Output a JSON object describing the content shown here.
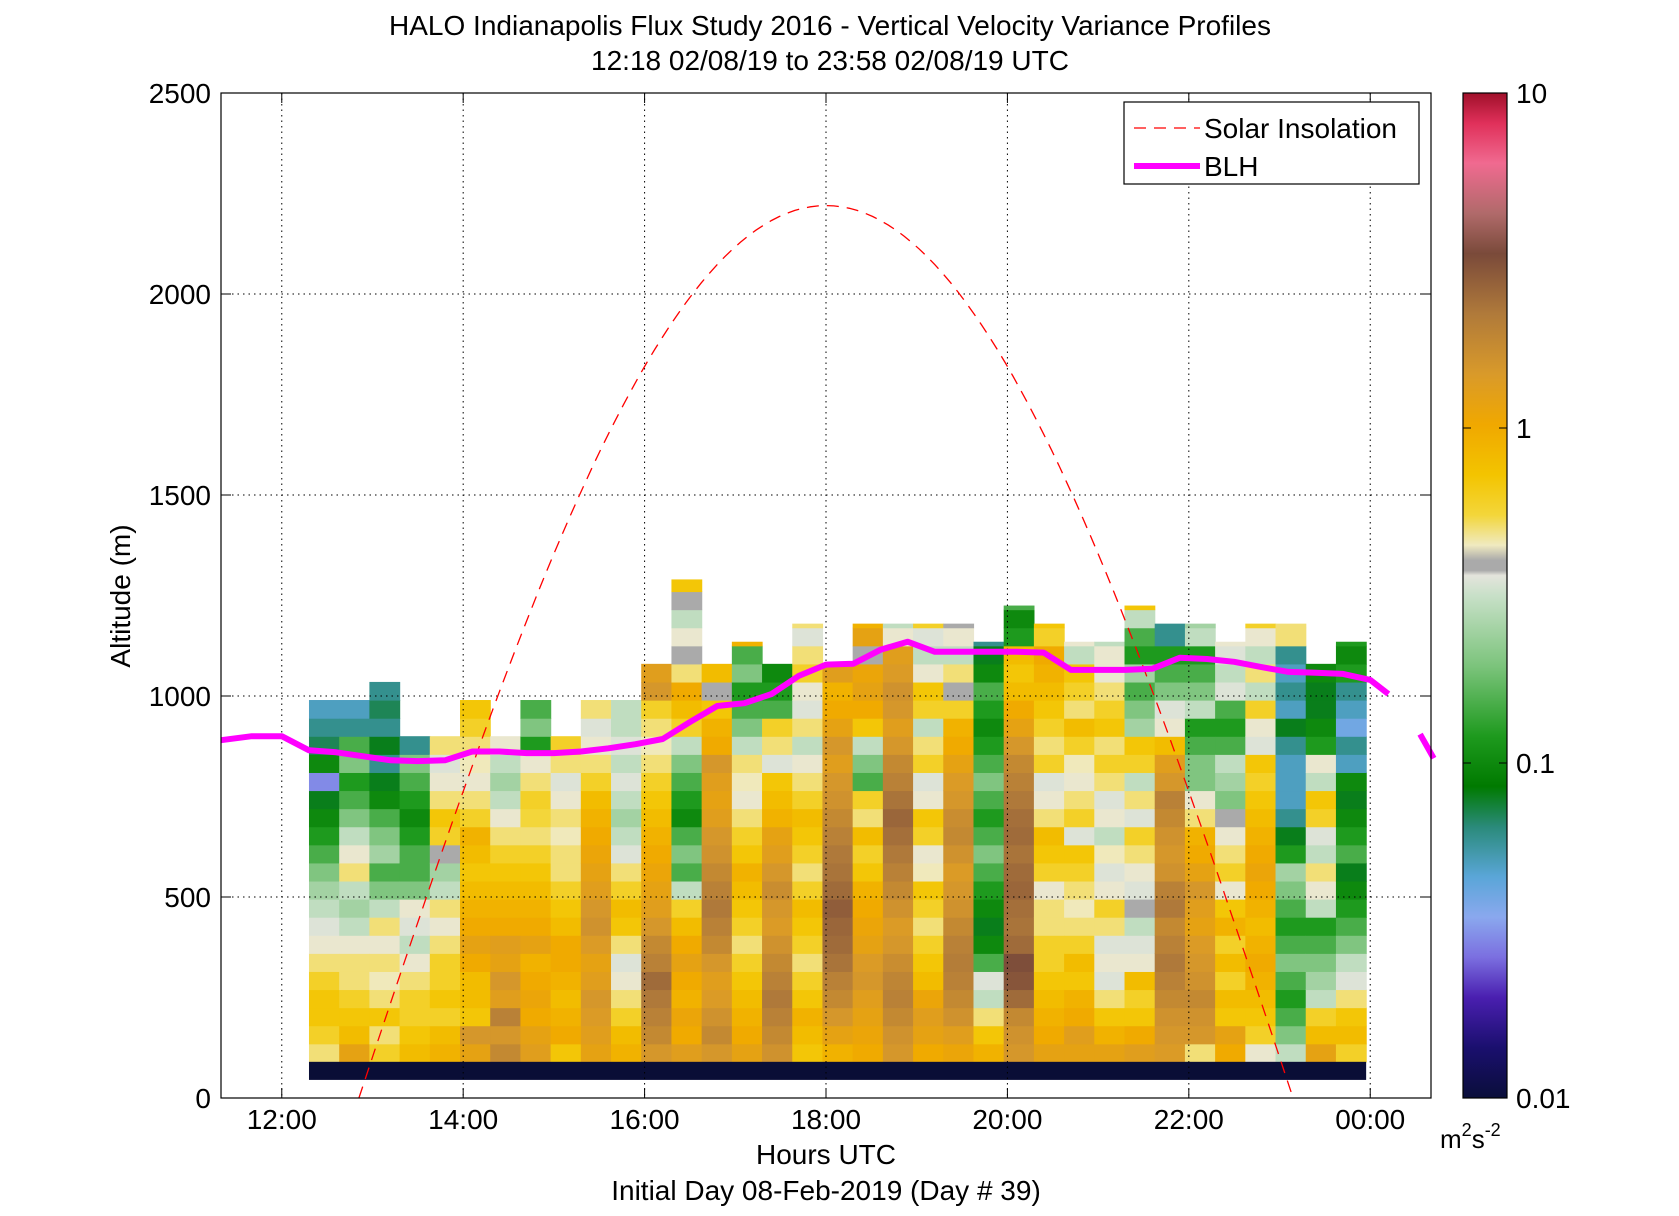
{
  "title": {
    "line1": "HALO Indianapolis Flux Study 2016 - Vertical Velocity Variance Profiles",
    "line2": "12:18 02/08/19 to 23:58 02/08/19  UTC"
  },
  "xaxis": {
    "label": "Hours UTC",
    "sublabel": "Initial Day 08-Feb-2019 (Day # 39)"
  },
  "yaxis": {
    "label": "Altitude (m)"
  },
  "colorbar": {
    "unit_base": "m",
    "unit_exp1": "2",
    "unit_mid": "s",
    "unit_exp2": "-2",
    "ticks": [
      "10",
      "1",
      "0.1",
      "0.01"
    ],
    "scale": "log",
    "range": [
      0.01,
      10
    ]
  },
  "legend": {
    "placement": "top-right",
    "entries": [
      {
        "label": "Solar Insolation",
        "color": "#ff0000",
        "style": "dashed"
      },
      {
        "label": "BLH",
        "color": "#ff00ff",
        "style": "solid"
      }
    ]
  },
  "chart_data": {
    "type": "heatmap",
    "x_range_hours": [
      11.33,
      24.67
    ],
    "y_range_m": [
      0,
      2500
    ],
    "grid": true,
    "x_ticks": [
      {
        "h": 12,
        "label": "12:00"
      },
      {
        "h": 14,
        "label": "14:00"
      },
      {
        "h": 16,
        "label": "16:00"
      },
      {
        "h": 18,
        "label": "18:00"
      },
      {
        "h": 20,
        "label": "20:00"
      },
      {
        "h": 22,
        "label": "22:00"
      },
      {
        "h": 24,
        "label": "00:00"
      }
    ],
    "y_ticks": [
      {
        "v": 0,
        "label": "0"
      },
      {
        "v": 500,
        "label": "500"
      },
      {
        "v": 1000,
        "label": "1000"
      },
      {
        "v": 1500,
        "label": "1500"
      },
      {
        "v": 2000,
        "label": "2000"
      },
      {
        "v": 2500,
        "label": "2500"
      }
    ],
    "col_start_h": 12.3,
    "col_width_h": 0.333,
    "row_start_m": 90,
    "row_height_m": 45,
    "ground_band": {
      "from_m": 45,
      "to_m": 90,
      "color": "#0a0e36"
    },
    "variance_columns": [
      {
        "top_m": 1000,
        "v": [
          0.5,
          0.6,
          0.7,
          0.7,
          0.6,
          0.5,
          0.4,
          0.35,
          0.3,
          0.25,
          0.2,
          0.15,
          0.12,
          0.1,
          0.08,
          0.03,
          0.1,
          0.07,
          0.06,
          0.05
        ]
      },
      {
        "top_m": 1000,
        "v": [
          1.2,
          0.8,
          0.7,
          0.6,
          0.5,
          0.5,
          0.4,
          0.3,
          0.25,
          0.3,
          0.5,
          0.4,
          0.3,
          0.2,
          0.15,
          0.12,
          0.2,
          0.15,
          0.06,
          0.05
        ]
      },
      {
        "top_m": 1045,
        "v": [
          0.6,
          0.5,
          0.7,
          0.5,
          0.45,
          0.5,
          0.4,
          0.5,
          0.3,
          0.2,
          0.15,
          0.25,
          0.2,
          0.15,
          0.1,
          0.08,
          0.06,
          0.08,
          0.06,
          0.07,
          0.06
        ]
      },
      {
        "top_m": 955,
        "v": [
          0.8,
          0.7,
          0.6,
          0.6,
          0.5,
          0.4,
          0.3,
          0.35,
          0.4,
          0.2,
          0.15,
          0.15,
          0.12,
          0.1,
          0.12,
          0.15,
          0.2,
          0.06
        ]
      },
      {
        "top_m": 955,
        "v": [
          0.9,
          0.8,
          0.6,
          0.7,
          0.6,
          0.6,
          0.5,
          0.4,
          0.5,
          0.3,
          0.25,
          "x",
          0.6,
          0.7,
          0.5,
          0.4,
          0.35,
          0.5
        ]
      },
      {
        "top_m": 1000,
        "v": [
          1.2,
          1.5,
          0.7,
          0.8,
          0.8,
          1.0,
          1.2,
          1.0,
          0.9,
          0.8,
          0.7,
          0.8,
          0.9,
          0.6,
          0.5,
          0.4,
          0.45,
          0.5,
          0.6,
          0.7
        ]
      },
      {
        "top_m": 955,
        "v": [
          1.8,
          1.5,
          2.0,
          1.3,
          1.5,
          1.2,
          1.3,
          1.0,
          0.9,
          0.8,
          0.7,
          0.6,
          0.5,
          0.4,
          0.3,
          0.25,
          0.3,
          0.4
        ]
      },
      {
        "top_m": 1000,
        "v": [
          1.3,
          1.2,
          1.0,
          1.1,
          1.0,
          0.9,
          1.2,
          1.0,
          0.9,
          0.8,
          0.7,
          0.6,
          0.5,
          0.55,
          0.6,
          0.5,
          0.4,
          0.12,
          0.2,
          0.15
        ]
      },
      {
        "top_m": 955,
        "v": [
          0.7,
          1.0,
          0.9,
          0.8,
          0.9,
          1.0,
          1.0,
          0.8,
          0.7,
          0.6,
          0.5,
          0.5,
          0.45,
          0.5,
          0.4,
          0.35,
          0.5,
          0.6
        ]
      },
      {
        "top_m": 1000,
        "v": [
          1.2,
          1.3,
          1.4,
          1.5,
          1.3,
          1.2,
          1.4,
          1.6,
          1.5,
          1.3,
          1.2,
          1.1,
          1.0,
          0.9,
          0.8,
          0.6,
          0.5,
          0.4,
          0.35,
          0.5
        ]
      },
      {
        "top_m": 1000,
        "v": [
          0.9,
          0.8,
          0.6,
          0.5,
          0.4,
          0.35,
          0.5,
          0.7,
          0.8,
          0.6,
          0.5,
          0.35,
          0.3,
          0.25,
          0.3,
          0.35,
          0.3,
          0.35,
          0.3,
          0.3
        ]
      },
      {
        "top_m": 1090,
        "v": [
          1.5,
          1.8,
          2.0,
          2.2,
          2.5,
          2.0,
          1.8,
          1.5,
          1.3,
          1.2,
          1.1,
          1.0,
          0.9,
          0.8,
          0.7,
          0.6,
          0.5,
          0.45,
          0.5,
          0.6,
          1.5,
          1.3
        ]
      },
      {
        "top_m": 1290,
        "v": [
          1.3,
          1.0,
          1.1,
          0.9,
          1.0,
          1.2,
          1.0,
          0.8,
          0.6,
          0.3,
          0.15,
          0.2,
          0.15,
          0.1,
          0.12,
          0.15,
          0.2,
          0.3,
          0.6,
          0.8,
          1.0,
          0.5,
          "x",
          0.4,
          0.3,
          "x",
          0.7
        ]
      },
      {
        "top_m": 1090,
        "v": [
          1.5,
          1.8,
          1.6,
          1.4,
          1.3,
          1.5,
          1.8,
          2.0,
          2.2,
          2.0,
          1.8,
          1.6,
          1.5,
          1.3,
          1.2,
          1.3,
          1.5,
          1.0,
          0.9,
          0.7,
          "x",
          0.8
        ]
      },
      {
        "top_m": 1135,
        "v": [
          1.2,
          1.0,
          0.9,
          0.8,
          0.7,
          0.6,
          0.5,
          0.6,
          0.7,
          0.8,
          0.9,
          0.7,
          0.6,
          0.5,
          0.4,
          0.45,
          0.5,
          0.3,
          0.2,
          0.15,
          0.12,
          0.2,
          0.15,
          0.9
        ]
      },
      {
        "top_m": 1090,
        "v": [
          1.6,
          1.8,
          2.0,
          2.2,
          2.0,
          1.8,
          1.6,
          1.4,
          1.5,
          1.7,
          1.5,
          1.3,
          1.2,
          0.9,
          0.8,
          0.7,
          0.35,
          0.5,
          0.6,
          0.15,
          0.12,
          0.1
        ]
      },
      {
        "top_m": 1180,
        "v": [
          0.7,
          0.8,
          0.9,
          0.7,
          0.6,
          0.5,
          0.6,
          0.7,
          0.8,
          0.6,
          0.5,
          0.6,
          0.7,
          0.8,
          0.6,
          0.5,
          0.4,
          0.3,
          0.5,
          0.35,
          0.4,
          0.6,
          0.5,
          0.35,
          0.5
        ]
      },
      {
        "top_m": 1090,
        "v": [
          0.9,
          1.2,
          1.5,
          1.8,
          2.0,
          2.3,
          2.5,
          2.6,
          2.8,
          2.5,
          2.3,
          2.2,
          2.0,
          1.8,
          1.6,
          1.5,
          1.3,
          1.5,
          1.2,
          1.0,
          0.9,
          1.3
        ]
      },
      {
        "top_m": 1180,
        "v": [
          1.0,
          1.1,
          1.2,
          1.3,
          1.5,
          1.4,
          1.2,
          1.1,
          1.0,
          0.9,
          0.7,
          0.6,
          0.8,
          0.5,
          0.6,
          0.15,
          0.2,
          0.3,
          0.7,
          1.0,
          1.2,
          1.1,
          "x",
          1.2,
          0.9
        ]
      },
      {
        "top_m": 1180,
        "v": [
          1.5,
          1.6,
          1.8,
          2.0,
          1.9,
          1.7,
          1.5,
          1.4,
          1.6,
          1.8,
          2.0,
          2.2,
          2.4,
          2.6,
          2.3,
          2.0,
          1.8,
          1.5,
          1.3,
          1.5,
          1.6,
          1.4,
          1.3,
          0.4,
          0.3
        ]
      },
      {
        "top_m": 1180,
        "v": [
          1.0,
          1.2,
          1.3,
          1.1,
          0.8,
          0.7,
          0.6,
          0.5,
          0.6,
          0.7,
          0.45,
          0.4,
          0.6,
          0.7,
          0.4,
          0.35,
          0.6,
          0.5,
          0.3,
          0.6,
          0.7,
          0.4,
          0.3,
          0.35,
          0.6
        ]
      },
      {
        "top_m": 1180,
        "v": [
          1.1,
          1.3,
          1.6,
          1.8,
          2.0,
          2.1,
          2.0,
          1.8,
          1.6,
          1.5,
          1.4,
          1.6,
          1.8,
          1.7,
          1.5,
          1.4,
          1.2,
          1.0,
          0.9,
          0.6,
          "x",
          0.5,
          0.3,
          0.4,
          "x"
        ]
      },
      {
        "top_m": 1135,
        "v": [
          0.9,
          0.7,
          0.5,
          0.3,
          0.35,
          0.15,
          0.1,
          0.08,
          0.1,
          0.12,
          0.15,
          0.2,
          0.15,
          0.12,
          0.15,
          0.2,
          0.15,
          0.12,
          0.1,
          0.12,
          0.15,
          0.1,
          0.08,
          0.06
        ]
      },
      {
        "top_m": 1225,
        "v": [
          1.5,
          1.6,
          1.8,
          2.5,
          3.0,
          3.2,
          2.5,
          2.3,
          2.4,
          2.6,
          2.5,
          2.3,
          2.5,
          2.4,
          2.2,
          2.0,
          1.8,
          1.5,
          1.2,
          1.0,
          0.8,
          0.7,
          0.8,
          0.12,
          0.1,
          0.15
        ]
      },
      {
        "top_m": 1180,
        "v": [
          1.2,
          1.0,
          0.9,
          0.8,
          0.7,
          0.6,
          0.6,
          0.5,
          0.5,
          0.4,
          0.6,
          0.7,
          0.8,
          0.5,
          0.4,
          0.35,
          0.6,
          0.5,
          0.6,
          0.7,
          0.8,
          0.9,
          1.0,
          0.6,
          0.7
        ]
      },
      {
        "top_m": 1135,
        "v": [
          1.2,
          1.3,
          1.0,
          0.9,
          0.7,
          0.8,
          0.6,
          0.5,
          0.45,
          0.5,
          0.6,
          0.7,
          0.35,
          0.6,
          0.5,
          0.4,
          0.45,
          0.6,
          0.8,
          0.5,
          0.6,
          0.7,
          0.3,
          0.4
        ]
      },
      {
        "top_m": 1135,
        "v": [
          1.2,
          0.9,
          0.7,
          0.5,
          0.35,
          0.4,
          0.35,
          0.5,
          0.6,
          0.4,
          0.35,
          0.45,
          0.3,
          0.4,
          0.35,
          0.5,
          0.6,
          0.5,
          0.7,
          0.6,
          0.5,
          0.4,
          0.4,
          0.3
        ]
      },
      {
        "top_m": 1225,
        "v": [
          1.3,
          1.0,
          0.7,
          0.6,
          0.8,
          0.4,
          0.35,
          0.3,
          "x",
          0.35,
          0.4,
          0.5,
          0.6,
          0.35,
          0.5,
          0.3,
          0.6,
          0.7,
          0.25,
          0.2,
          0.15,
          0.25,
          0.12,
          0.15,
          0.3,
          0.7
        ]
      },
      {
        "top_m": 1180,
        "v": [
          1.4,
          1.5,
          1.6,
          1.8,
          2.0,
          2.2,
          2.0,
          1.8,
          2.2,
          2.0,
          1.6,
          1.5,
          1.6,
          1.8,
          2.0,
          1.5,
          1.3,
          0.8,
          0.4,
          0.35,
          0.2,
          0.15,
          0.12,
          0.06,
          0.06
        ]
      },
      {
        "top_m": 1180,
        "v": [
          0.5,
          1.5,
          1.6,
          1.8,
          1.6,
          1.5,
          1.4,
          1.2,
          1.3,
          1.5,
          1.2,
          1.0,
          0.9,
          0.5,
          0.4,
          0.2,
          0.2,
          0.15,
          0.12,
          0.3,
          0.2,
          0.15,
          0.12,
          0.3,
          0.25
        ]
      },
      {
        "top_m": 1135,
        "v": [
          1.0,
          1.2,
          0.7,
          0.8,
          0.6,
          0.8,
          0.6,
          0.9,
          0.7,
          0.4,
          0.6,
          0.5,
          0.4,
          "x",
          0.2,
          0.25,
          0.3,
          0.15,
          0.12,
          0.15,
          0.35,
          0.3,
          0.35,
          0.4
        ]
      },
      {
        "top_m": 1180,
        "v": [
          0.4,
          0.6,
          0.7,
          0.8,
          0.9,
          1.0,
          0.9,
          0.8,
          0.9,
          1.0,
          1.1,
          1.0,
          0.9,
          0.8,
          0.7,
          0.6,
          0.7,
          0.35,
          0.4,
          0.6,
          0.3,
          0.5,
          0.3,
          0.4,
          0.6
        ]
      },
      {
        "top_m": 1180,
        "v": [
          0.3,
          0.2,
          0.15,
          0.12,
          0.15,
          0.2,
          0.15,
          0.12,
          0.15,
          0.2,
          0.25,
          0.12,
          0.08,
          0.06,
          0.05,
          0.05,
          0.05,
          0.06,
          0.08,
          0.05,
          0.06,
          0.05,
          0.06,
          0.5,
          0.5
        ]
      },
      {
        "top_m": 1090,
        "v": [
          1.2,
          0.8,
          0.6,
          0.3,
          0.25,
          0.2,
          0.15,
          0.12,
          0.3,
          0.4,
          0.5,
          0.3,
          0.35,
          0.6,
          0.7,
          0.3,
          0.4,
          0.12,
          0.1,
          0.08,
          0.08,
          0.1
        ]
      },
      {
        "top_m": 1135,
        "v": [
          0.6,
          0.8,
          0.7,
          0.5,
          0.35,
          0.3,
          0.2,
          0.15,
          0.12,
          0.1,
          0.08,
          0.15,
          0.12,
          0.1,
          0.08,
          0.1,
          0.05,
          0.06,
          0.04,
          0.05,
          0.06,
          0.12,
          0.1,
          0.12
        ]
      }
    ],
    "blh": {
      "name": "BLH",
      "x_h": [
        11.33,
        11.67,
        12.0,
        12.3,
        12.6,
        12.9,
        13.2,
        13.5,
        13.8,
        14.1,
        14.4,
        14.7,
        15.0,
        15.3,
        15.6,
        15.9,
        16.2,
        16.5,
        16.8,
        17.1,
        17.4,
        17.7,
        18.0,
        18.3,
        18.6,
        18.9,
        19.2,
        19.5,
        19.8,
        20.1,
        20.4,
        20.7,
        21.0,
        21.3,
        21.6,
        21.9,
        22.2,
        22.5,
        22.8,
        23.1,
        23.4,
        23.7,
        24.0,
        24.2
      ],
      "y_m": [
        890,
        900,
        900,
        865,
        860,
        850,
        840,
        838,
        840,
        862,
        862,
        858,
        858,
        862,
        870,
        880,
        893,
        935,
        975,
        982,
        1005,
        1050,
        1078,
        1080,
        1115,
        1135,
        1110,
        1110,
        1110,
        1110,
        1108,
        1065,
        1065,
        1065,
        1068,
        1095,
        1092,
        1085,
        1072,
        1060,
        1058,
        1055,
        1040,
        1005
      ],
      "tail_x_h": [
        24.55,
        24.7
      ],
      "tail_y_m": [
        905,
        845
      ]
    },
    "solar": {
      "name": "Solar Insolation",
      "sunrise_h": 12.85,
      "noon_h": 18.0,
      "sunset_h": 23.15,
      "peak_m": 2220
    }
  }
}
